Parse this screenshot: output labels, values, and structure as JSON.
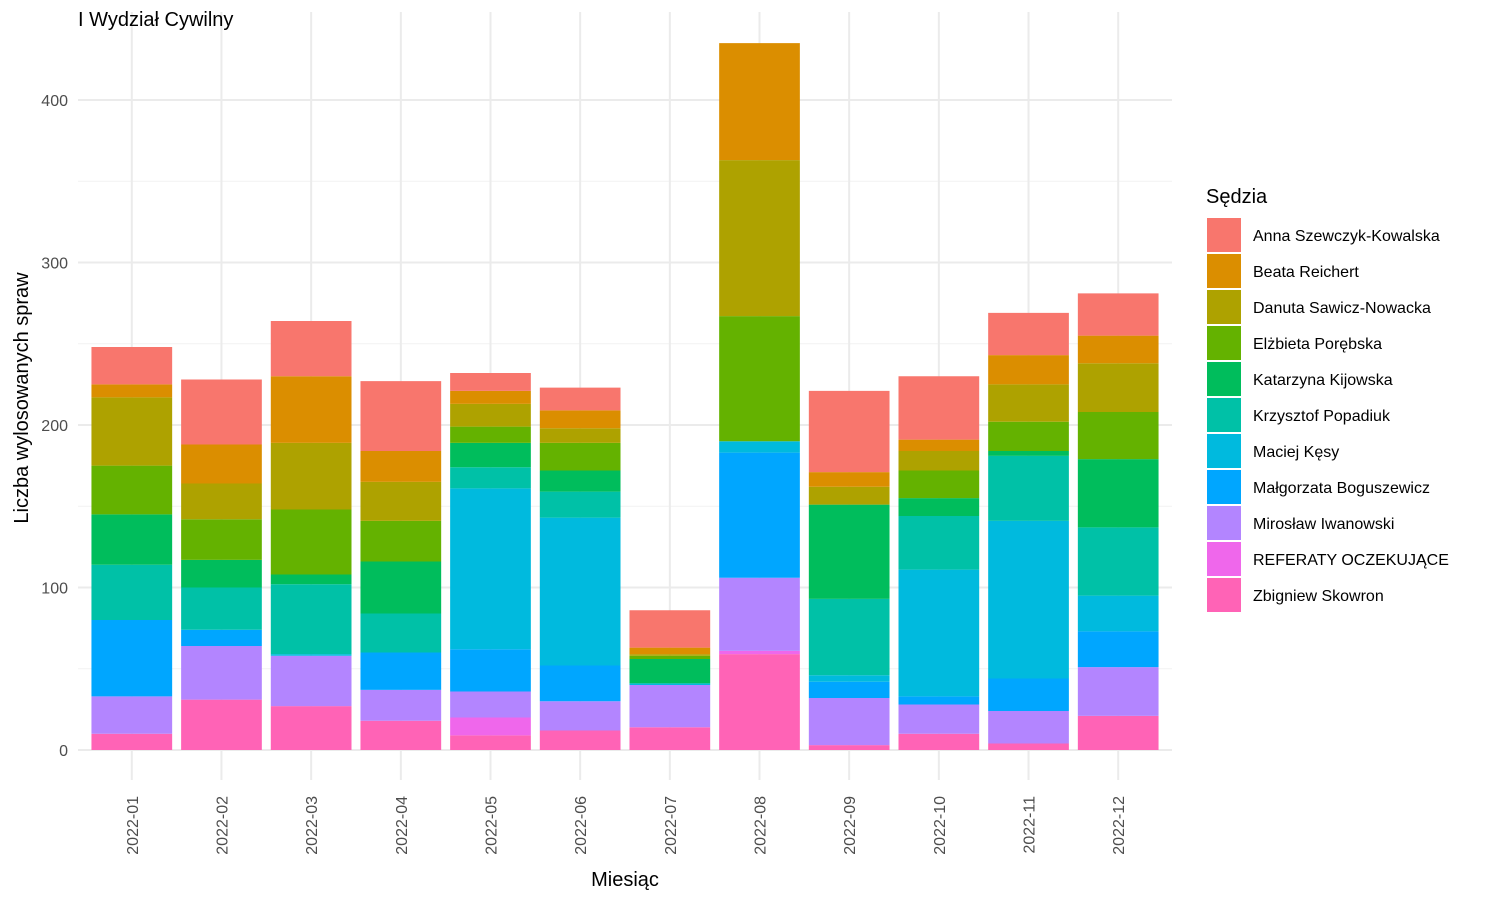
{
  "chart_data": {
    "type": "bar",
    "stacked": true,
    "title": "I Wydział Cywilny",
    "xlabel": "Miesiąc",
    "ylabel": "Liczba wylosowanych spraw",
    "ylim": [
      0,
      435
    ],
    "yticks": [
      0,
      100,
      200,
      300,
      400
    ],
    "grid": true,
    "legend_title": "Sędzia",
    "legend_position": "right",
    "categories": [
      "2022-01",
      "2022-02",
      "2022-03",
      "2022-04",
      "2022-05",
      "2022-06",
      "2022-07",
      "2022-08",
      "2022-09",
      "2022-10",
      "2022-11",
      "2022-12"
    ],
    "series": [
      {
        "name": "Anna Szewczyk-Kowalska",
        "color": "#F8766D",
        "values": [
          23,
          40,
          34,
          43,
          11,
          14,
          23,
          0,
          50,
          39,
          26,
          26
        ]
      },
      {
        "name": "Beata Reichert",
        "color": "#DB8E00",
        "values": [
          8,
          24,
          41,
          19,
          8,
          11,
          4,
          72,
          9,
          7,
          18,
          17
        ]
      },
      {
        "name": "Danuta Sawicz-Nowacka",
        "color": "#AEA200",
        "values": [
          42,
          22,
          41,
          24,
          14,
          9,
          1,
          96,
          11,
          12,
          23,
          30
        ]
      },
      {
        "name": "Elżbieta Porębska",
        "color": "#64B200",
        "values": [
          30,
          25,
          40,
          25,
          10,
          17,
          2,
          77,
          0,
          17,
          18,
          29
        ]
      },
      {
        "name": "Katarzyna Kijowska",
        "color": "#00BD5C",
        "values": [
          31,
          17,
          6,
          32,
          15,
          13,
          15,
          0,
          58,
          11,
          3,
          42
        ]
      },
      {
        "name": "Krzysztof Popadiuk",
        "color": "#00C1A7",
        "values": [
          34,
          26,
          43,
          24,
          13,
          16,
          0,
          0,
          47,
          33,
          40,
          42
        ]
      },
      {
        "name": "Maciej Kęsy",
        "color": "#00BADE",
        "values": [
          0,
          0,
          1,
          0,
          99,
          91,
          1,
          7,
          4,
          78,
          97,
          22
        ]
      },
      {
        "name": "Małgorzata Boguszewicz",
        "color": "#00A6FF",
        "values": [
          47,
          10,
          0,
          23,
          26,
          22,
          0,
          77,
          10,
          5,
          20,
          22
        ]
      },
      {
        "name": "Mirosław Iwanowski",
        "color": "#B385FF",
        "values": [
          23,
          33,
          31,
          19,
          16,
          18,
          26,
          45,
          29,
          18,
          20,
          30
        ]
      },
      {
        "name": "REFERATY OCZEKUJĄCE",
        "color": "#EF67EB",
        "values": [
          0,
          0,
          0,
          0,
          11,
          0,
          0,
          2,
          0,
          0,
          0,
          0
        ]
      },
      {
        "name": "Zbigniew Skowron",
        "color": "#FF63B6",
        "values": [
          10,
          31,
          27,
          18,
          9,
          12,
          14,
          59,
          3,
          10,
          4,
          21
        ]
      }
    ]
  }
}
